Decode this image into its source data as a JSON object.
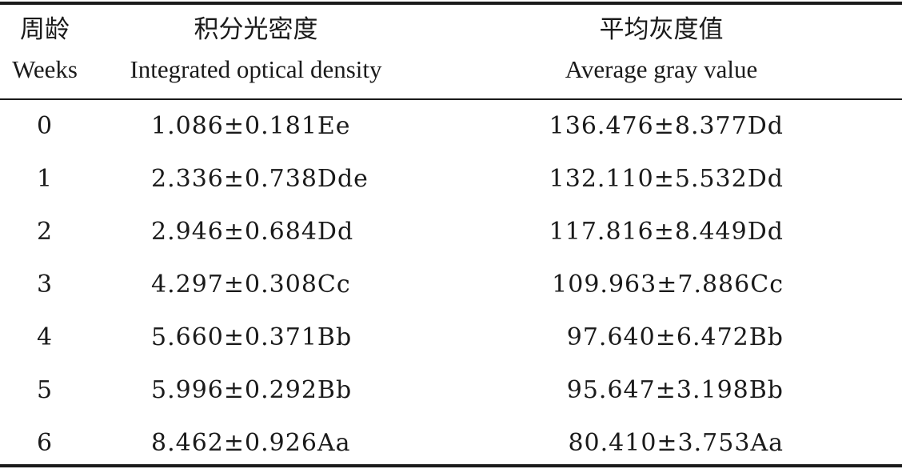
{
  "table": {
    "headers": {
      "weeks_cn": "周龄",
      "weeks_en": "Weeks",
      "iod_cn": "积分光密度",
      "iod_en": "Integrated optical density",
      "agv_cn": "平均灰度值",
      "agv_en": "Average gray value"
    },
    "rows": [
      {
        "week": "0",
        "iod": "1.086±0.181Ee",
        "agv": "136.476±8.377Dd"
      },
      {
        "week": "1",
        "iod": "2.336±0.738Dde",
        "agv": "132.110±5.532Dd"
      },
      {
        "week": "2",
        "iod": "2.946±0.684Dd",
        "agv": "117.816±8.449Dd"
      },
      {
        "week": "3",
        "iod": "4.297±0.308Cc",
        "agv": "109.963±7.886Cc"
      },
      {
        "week": "4",
        "iod": "5.660±0.371Bb",
        "agv": "97.640±6.472Bb"
      },
      {
        "week": "5",
        "iod": "5.996±0.292Bb",
        "agv": "95.647±3.198Bb"
      },
      {
        "week": "6",
        "iod": "8.462±0.926Aa",
        "agv": "80.410±3.753Aa"
      }
    ]
  }
}
